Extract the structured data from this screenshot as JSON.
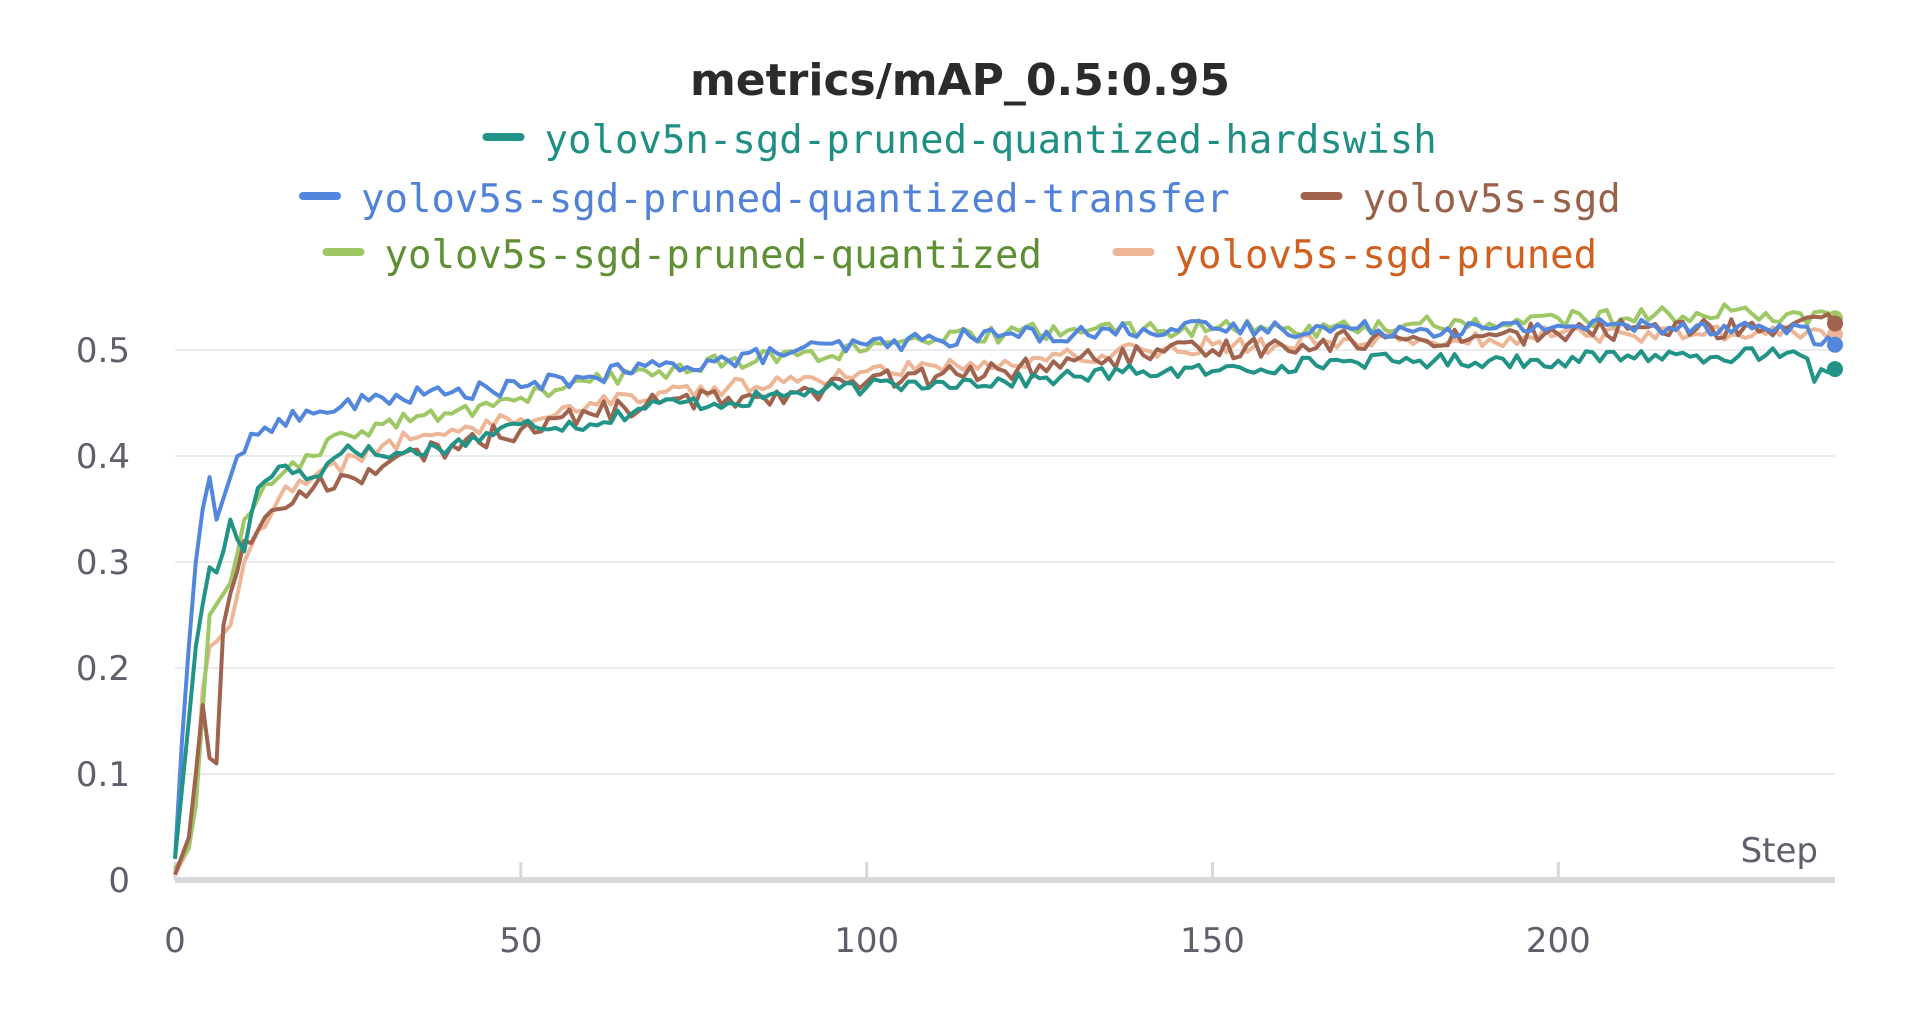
{
  "chart_data": {
    "type": "line",
    "title": "metrics/mAP_0.5:0.95",
    "xlabel": "Step",
    "ylabel": "",
    "xlim": [
      0,
      240
    ],
    "ylim": [
      0,
      0.55
    ],
    "xticks": [
      0,
      50,
      100,
      150,
      200
    ],
    "xtick_labels": [
      "0",
      "50",
      "100",
      "150",
      "200"
    ],
    "yticks": [
      0,
      0.1,
      0.2,
      0.3,
      0.4,
      0.5
    ],
    "ytick_labels": [
      "0",
      "0.1",
      "0.2",
      "0.3",
      "0.4",
      "0.5"
    ],
    "grid": true,
    "legend_position": "top-center",
    "legend_rows": [
      [
        0
      ],
      [
        1,
        2
      ],
      [
        3,
        4
      ]
    ],
    "series": [
      {
        "name": "yolov5n-sgd-pruned-quantized-hardswish",
        "color": "#229487",
        "text_color": "#1e8f82",
        "end_marker": true,
        "anchors": [
          [
            0,
            0.02
          ],
          [
            2,
            0.15
          ],
          [
            3,
            0.22
          ],
          [
            4,
            0.26
          ],
          [
            5,
            0.295
          ],
          [
            6,
            0.29
          ],
          [
            7,
            0.31
          ],
          [
            8,
            0.34
          ],
          [
            10,
            0.31
          ],
          [
            12,
            0.37
          ],
          [
            15,
            0.39
          ],
          [
            20,
            0.38
          ],
          [
            25,
            0.41
          ],
          [
            30,
            0.4
          ],
          [
            40,
            0.41
          ],
          [
            50,
            0.43
          ],
          [
            60,
            0.43
          ],
          [
            70,
            0.45
          ],
          [
            80,
            0.45
          ],
          [
            90,
            0.46
          ],
          [
            100,
            0.465
          ],
          [
            110,
            0.47
          ],
          [
            120,
            0.47
          ],
          [
            130,
            0.475
          ],
          [
            140,
            0.48
          ],
          [
            150,
            0.48
          ],
          [
            160,
            0.485
          ],
          [
            170,
            0.49
          ],
          [
            180,
            0.49
          ],
          [
            190,
            0.49
          ],
          [
            200,
            0.49
          ],
          [
            210,
            0.495
          ],
          [
            220,
            0.495
          ],
          [
            230,
            0.495
          ],
          [
            236,
            0.492
          ],
          [
            237,
            0.47
          ],
          [
            238,
            0.482
          ],
          [
            240,
            0.482
          ]
        ],
        "noise": 0.007
      },
      {
        "name": "yolov5s-sgd-pruned-quantized-transfer",
        "color": "#5387dd",
        "text_color": "#4f82d8",
        "end_marker": true,
        "anchors": [
          [
            0,
            0.02
          ],
          [
            1,
            0.13
          ],
          [
            2,
            0.22
          ],
          [
            3,
            0.3
          ],
          [
            4,
            0.35
          ],
          [
            5,
            0.38
          ],
          [
            6,
            0.34
          ],
          [
            7,
            0.36
          ],
          [
            9,
            0.4
          ],
          [
            12,
            0.42
          ],
          [
            15,
            0.435
          ],
          [
            20,
            0.44
          ],
          [
            30,
            0.455
          ],
          [
            40,
            0.46
          ],
          [
            50,
            0.465
          ],
          [
            60,
            0.475
          ],
          [
            70,
            0.485
          ],
          [
            80,
            0.49
          ],
          [
            90,
            0.5
          ],
          [
            100,
            0.505
          ],
          [
            110,
            0.51
          ],
          [
            120,
            0.515
          ],
          [
            130,
            0.515
          ],
          [
            140,
            0.52
          ],
          [
            150,
            0.52
          ],
          [
            160,
            0.52
          ],
          [
            170,
            0.52
          ],
          [
            180,
            0.52
          ],
          [
            190,
            0.52
          ],
          [
            200,
            0.523
          ],
          [
            210,
            0.523
          ],
          [
            220,
            0.523
          ],
          [
            230,
            0.52
          ],
          [
            236,
            0.522
          ],
          [
            238,
            0.505
          ],
          [
            240,
            0.505
          ]
        ],
        "noise": 0.008
      },
      {
        "name": "yolov5s-sgd",
        "color": "#a0634e",
        "text_color": "#9a6149",
        "end_marker": true,
        "anchors": [
          [
            0,
            0.005
          ],
          [
            2,
            0.04
          ],
          [
            3,
            0.1
          ],
          [
            4,
            0.165
          ],
          [
            5,
            0.115
          ],
          [
            6,
            0.11
          ],
          [
            7,
            0.24
          ],
          [
            8,
            0.27
          ],
          [
            10,
            0.32
          ],
          [
            12,
            0.33
          ],
          [
            15,
            0.35
          ],
          [
            20,
            0.37
          ],
          [
            30,
            0.39
          ],
          [
            40,
            0.41
          ],
          [
            50,
            0.425
          ],
          [
            60,
            0.44
          ],
          [
            70,
            0.45
          ],
          [
            80,
            0.455
          ],
          [
            90,
            0.46
          ],
          [
            100,
            0.47
          ],
          [
            110,
            0.475
          ],
          [
            120,
            0.48
          ],
          [
            130,
            0.49
          ],
          [
            140,
            0.495
          ],
          [
            150,
            0.5
          ],
          [
            160,
            0.505
          ],
          [
            170,
            0.51
          ],
          [
            180,
            0.51
          ],
          [
            190,
            0.515
          ],
          [
            200,
            0.515
          ],
          [
            210,
            0.52
          ],
          [
            220,
            0.52
          ],
          [
            230,
            0.52
          ],
          [
            240,
            0.525
          ]
        ],
        "noise": 0.01
      },
      {
        "name": "yolov5s-sgd-pruned-quantized",
        "color": "#9ec865",
        "text_color": "#5e8f33",
        "end_marker": true,
        "anchors": [
          [
            0,
            0.01
          ],
          [
            2,
            0.03
          ],
          [
            3,
            0.07
          ],
          [
            4,
            0.16
          ],
          [
            5,
            0.25
          ],
          [
            6,
            0.26
          ],
          [
            8,
            0.28
          ],
          [
            10,
            0.34
          ],
          [
            12,
            0.36
          ],
          [
            15,
            0.38
          ],
          [
            20,
            0.4
          ],
          [
            25,
            0.42
          ],
          [
            30,
            0.43
          ],
          [
            40,
            0.44
          ],
          [
            50,
            0.455
          ],
          [
            60,
            0.47
          ],
          [
            70,
            0.48
          ],
          [
            80,
            0.49
          ],
          [
            90,
            0.495
          ],
          [
            100,
            0.5
          ],
          [
            110,
            0.51
          ],
          [
            120,
            0.515
          ],
          [
            130,
            0.52
          ],
          [
            140,
            0.52
          ],
          [
            150,
            0.52
          ],
          [
            160,
            0.52
          ],
          [
            170,
            0.52
          ],
          [
            180,
            0.525
          ],
          [
            190,
            0.525
          ],
          [
            200,
            0.53
          ],
          [
            210,
            0.53
          ],
          [
            220,
            0.535
          ],
          [
            230,
            0.535
          ],
          [
            240,
            0.53
          ]
        ],
        "noise": 0.008
      },
      {
        "name": "yolov5s-sgd-pruned",
        "color": "#edb797",
        "text_color": "#d15f1f",
        "end_marker": true,
        "anchors": [
          [
            0,
            0.005
          ],
          [
            2,
            0.03
          ],
          [
            3,
            0.08
          ],
          [
            4,
            0.18
          ],
          [
            5,
            0.22
          ],
          [
            6,
            0.225
          ],
          [
            8,
            0.24
          ],
          [
            10,
            0.3
          ],
          [
            12,
            0.33
          ],
          [
            15,
            0.36
          ],
          [
            20,
            0.38
          ],
          [
            30,
            0.41
          ],
          [
            40,
            0.425
          ],
          [
            50,
            0.435
          ],
          [
            60,
            0.45
          ],
          [
            70,
            0.46
          ],
          [
            80,
            0.465
          ],
          [
            90,
            0.47
          ],
          [
            100,
            0.48
          ],
          [
            110,
            0.485
          ],
          [
            120,
            0.49
          ],
          [
            130,
            0.495
          ],
          [
            140,
            0.5
          ],
          [
            150,
            0.505
          ],
          [
            160,
            0.505
          ],
          [
            170,
            0.51
          ],
          [
            180,
            0.51
          ],
          [
            190,
            0.51
          ],
          [
            200,
            0.515
          ],
          [
            210,
            0.515
          ],
          [
            220,
            0.515
          ],
          [
            230,
            0.515
          ],
          [
            240,
            0.515
          ]
        ],
        "noise": 0.008
      }
    ]
  }
}
